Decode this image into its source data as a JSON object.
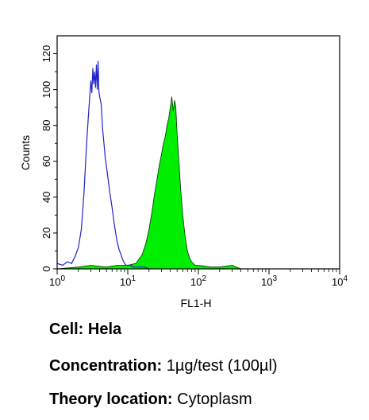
{
  "chart_data": {
    "type": "area",
    "title": "",
    "xlabel": "FL1-H",
    "ylabel": "Counts",
    "x_scale": "log",
    "xlim": [
      1,
      10000
    ],
    "ylim": [
      0,
      130
    ],
    "x_ticks": [
      {
        "value": 1,
        "base": "10",
        "exp": "0"
      },
      {
        "value": 10,
        "base": "10",
        "exp": "1"
      },
      {
        "value": 100,
        "base": "10",
        "exp": "2"
      },
      {
        "value": 1000,
        "base": "10",
        "exp": "3"
      },
      {
        "value": 10000,
        "base": "10",
        "exp": "4"
      }
    ],
    "y_ticks": [
      0,
      20,
      40,
      60,
      80,
      100,
      120
    ],
    "grid": false,
    "legend": null,
    "series": [
      {
        "style": "outline",
        "color": "#2222cc",
        "x": [
          1.0,
          1.2,
          1.4,
          1.6,
          1.8,
          2.0,
          2.2,
          2.4,
          2.6,
          2.8,
          3.0,
          3.1,
          3.2,
          3.3,
          3.4,
          3.5,
          3.6,
          3.7,
          3.8,
          3.9,
          4.0,
          4.2,
          4.4,
          4.6,
          4.8,
          5.0,
          5.3,
          5.6,
          6.0,
          6.5,
          7.0,
          7.5,
          8.0,
          8.5,
          9.0,
          9.5,
          10.0,
          11.0,
          12.0,
          14.0,
          17.0,
          20.0
        ],
        "y": [
          3,
          2,
          4,
          3,
          7,
          12,
          22,
          42,
          68,
          88,
          105,
          98,
          112,
          103,
          110,
          101,
          114,
          100,
          116,
          99,
          96,
          92,
          78,
          70,
          62,
          57,
          49,
          42,
          34,
          24,
          16,
          11,
          8,
          5,
          3,
          2,
          2,
          2,
          1,
          1,
          1,
          0
        ]
      },
      {
        "style": "filled",
        "color": "#00ee00",
        "x": [
          1.0,
          2.0,
          3.0,
          5.0,
          7.0,
          10.0,
          13.0,
          16.0,
          18.0,
          20.0,
          22.0,
          24.0,
          26.0,
          28.0,
          30.0,
          32.0,
          34.0,
          36.0,
          38.0,
          40.0,
          42.0,
          44.0,
          46.0,
          48.0,
          50.0,
          53.0,
          56.0,
          60.0,
          65.0,
          70.0,
          75.0,
          80.0,
          90.0,
          100.0,
          150.0,
          200.0,
          300.0,
          400.0
        ],
        "y": [
          0,
          1,
          2,
          1,
          2,
          2,
          3,
          8,
          14,
          22,
          32,
          42,
          50,
          58,
          64,
          70,
          74,
          80,
          84,
          90,
          96,
          88,
          94,
          90,
          75,
          60,
          45,
          30,
          18,
          10,
          6,
          4,
          2,
          2,
          1,
          1,
          2,
          0
        ]
      }
    ]
  },
  "info": {
    "cell_label": "Cell:",
    "cell_value": "Hela",
    "concentration_label": "Concentration:",
    "concentration_value": "1µg/test (100µl)",
    "location_label": "Theory location:",
    "location_value": "Cytoplasm"
  }
}
